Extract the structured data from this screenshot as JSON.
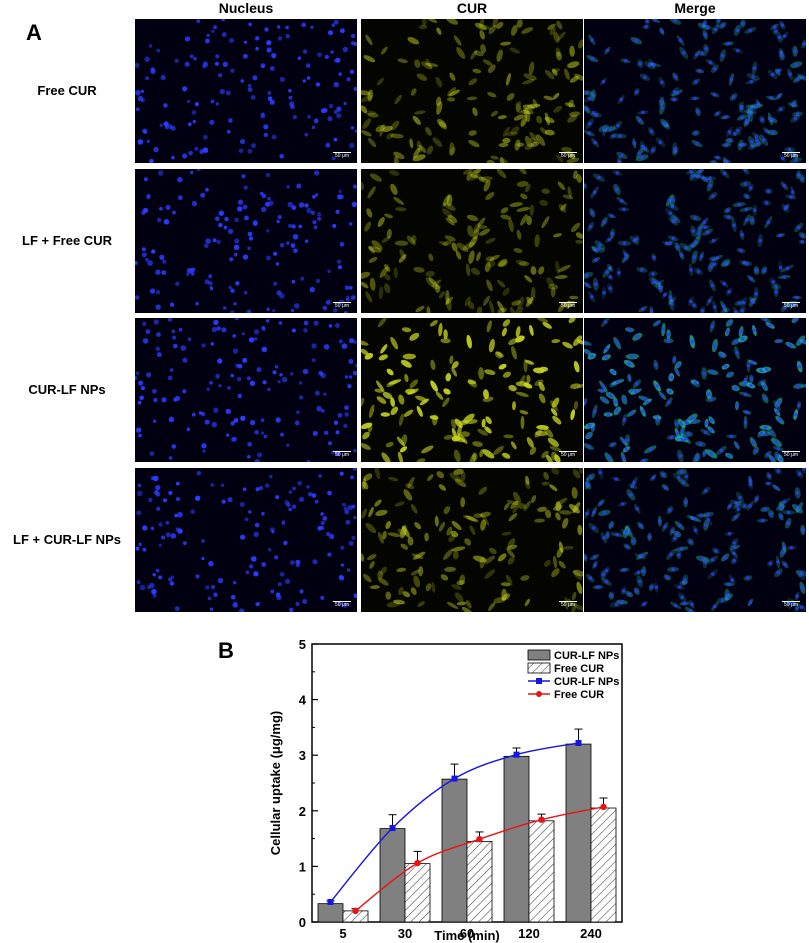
{
  "panel_a": {
    "letter": "A",
    "columns": [
      {
        "label": "Nucleus",
        "channel": "nucleus"
      },
      {
        "label": "CUR",
        "channel": "cur"
      },
      {
        "label": "Merge",
        "channel": "merge"
      }
    ],
    "rows": [
      {
        "label": "Free CUR",
        "intensity": 0.55
      },
      {
        "label": "LF + Free CUR",
        "intensity": 0.5
      },
      {
        "label": "CUR-LF NPs",
        "intensity": 1.0
      },
      {
        "label": "LF + CUR-LF NPs",
        "intensity": 0.6
      }
    ],
    "scale_bar": "50 μm",
    "colors": {
      "nucleus": "#2a3cff",
      "cur": "#c8d61e",
      "merge_cell": "#1fb8a8",
      "tile_bg": "#000010"
    }
  },
  "panel_b": {
    "letter": "B"
  },
  "chart_data": {
    "type": "bar",
    "categories": [
      "5",
      "30",
      "60",
      "120",
      "240"
    ],
    "series": [
      {
        "name": "CUR-LF NPs",
        "kind": "bar",
        "fill": "gray",
        "values": [
          0.33,
          1.68,
          2.57,
          2.98,
          3.2
        ],
        "errors": [
          0.05,
          0.25,
          0.27,
          0.15,
          0.27
        ]
      },
      {
        "name": "Free CUR",
        "kind": "bar",
        "fill": "hatched",
        "values": [
          0.2,
          1.05,
          1.45,
          1.82,
          2.05
        ],
        "errors": [
          0.04,
          0.22,
          0.17,
          0.12,
          0.18
        ]
      },
      {
        "name": "CUR-LF NPs",
        "kind": "line",
        "color": "#1515e6",
        "marker": "square",
        "values": [
          0.36,
          1.69,
          2.58,
          3.01,
          3.22
        ]
      },
      {
        "name": "Free CUR",
        "kind": "line",
        "color": "#e61515",
        "marker": "circle",
        "values": [
          0.2,
          1.06,
          1.49,
          1.84,
          2.07
        ]
      }
    ],
    "xlabel": "Time (min)",
    "ylabel": "Cellular uptake (μg/mg)",
    "ylim": [
      0,
      5
    ],
    "yticks": [
      "0",
      "1",
      "2",
      "3",
      "4",
      "5"
    ],
    "legend_position": "top-right",
    "grid": false
  }
}
